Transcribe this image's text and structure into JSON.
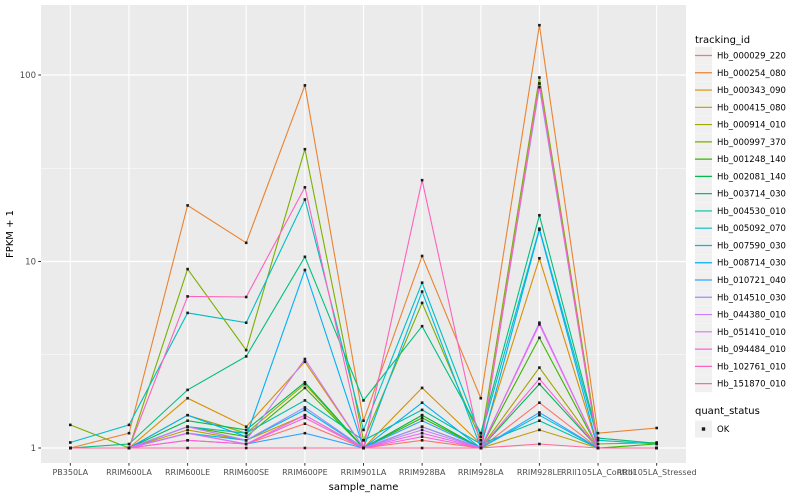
{
  "figure": {
    "y_axis_title": "FPKM + 1",
    "x_axis_title": "sample_name",
    "legend_title": "tracking_id",
    "quant_legend_title": "quant_status",
    "quant_legend_items": [
      {
        "label": "OK"
      }
    ],
    "colors": {
      "panel_bg": "#EBEBEB",
      "grid": "#FFFFFF",
      "axis_text": "#4D4D4D",
      "axis_title": "#000000",
      "tick_mark": "#333333",
      "point": "#1A1A1A",
      "legend_key_bg": "#F0F0F0"
    }
  },
  "chart_data": {
    "type": "line",
    "title": "",
    "xlabel": "sample_name",
    "ylabel": "FPKM + 1",
    "y_scale": "log10",
    "y_ticks": [
      1,
      10,
      100
    ],
    "y_minor_ticks": [
      3.1623,
      31.623
    ],
    "ylim": [
      0.84,
      234
    ],
    "grid": true,
    "legend_position": "right",
    "point_shape": "filled-square",
    "categories": [
      "PB350LA",
      "RRIM600LA",
      "RRIM600LE",
      "RRIM600SE",
      "RRIM600PE",
      "RRIM901LA",
      "RRIM928BA",
      "RRIM928LA",
      "RRIM928LE",
      "RRII105LA_Control",
      "RRII105LA_Stressed"
    ],
    "series": [
      {
        "name": "Hb_000029_220",
        "color": "#F8766D",
        "values": [
          1.0,
          1.0,
          1.1,
          1.05,
          1.35,
          1.0,
          1.1,
          1.0,
          1.75,
          1.0,
          1.0
        ]
      },
      {
        "name": "Hb_000254_080",
        "color": "#EA8331",
        "values": [
          1.0,
          1.2,
          20.0,
          12.6,
          88.0,
          1.4,
          10.7,
          1.85,
          185.0,
          1.2,
          1.28
        ]
      },
      {
        "name": "Hb_000343_090",
        "color": "#D89000",
        "values": [
          1.0,
          1.0,
          1.85,
          1.3,
          2.9,
          1.0,
          2.1,
          1.05,
          10.4,
          1.0,
          1.0
        ]
      },
      {
        "name": "Hb_000415_080",
        "color": "#C09B00",
        "values": [
          1.0,
          1.0,
          1.25,
          1.1,
          1.5,
          1.0,
          1.3,
          1.0,
          1.25,
          1.0,
          1.0
        ]
      },
      {
        "name": "Hb_000914_010",
        "color": "#A3A500",
        "values": [
          1.0,
          1.0,
          1.5,
          1.2,
          2.2,
          1.0,
          1.5,
          1.0,
          2.7,
          1.0,
          1.0
        ]
      },
      {
        "name": "Hb_000997_370",
        "color": "#7CAE00",
        "values": [
          1.33,
          1.0,
          9.1,
          3.35,
          40.0,
          1.1,
          6.0,
          1.1,
          97.0,
          1.05,
          1.07
        ]
      },
      {
        "name": "Hb_001248_140",
        "color": "#39B600",
        "values": [
          1.0,
          1.0,
          1.3,
          1.15,
          2.1,
          1.0,
          1.45,
          1.0,
          3.9,
          1.0,
          1.05
        ]
      },
      {
        "name": "Hb_002081_140",
        "color": "#00BB4E",
        "values": [
          1.0,
          1.0,
          1.4,
          1.25,
          2.25,
          1.0,
          1.5,
          1.0,
          2.2,
          1.0,
          1.0
        ]
      },
      {
        "name": "Hb_003714_030",
        "color": "#00BF7D",
        "values": [
          1.0,
          1.05,
          2.05,
          3.1,
          10.6,
          1.8,
          4.5,
          1.2,
          17.7,
          1.13,
          1.06
        ]
      },
      {
        "name": "Hb_004530_010",
        "color": "#00C1A3",
        "values": [
          1.0,
          1.0,
          1.3,
          1.2,
          1.8,
          1.1,
          1.6,
          1.05,
          1.4,
          1.0,
          1.0
        ]
      },
      {
        "name": "Hb_005092_070",
        "color": "#00BFC4",
        "values": [
          1.07,
          1.33,
          5.3,
          4.7,
          21.5,
          1.25,
          7.7,
          1.15,
          15.0,
          1.1,
          1.05
        ]
      },
      {
        "name": "Hb_007590_030",
        "color": "#00BAE0",
        "values": [
          1.0,
          1.0,
          1.2,
          1.1,
          1.6,
          1.0,
          6.9,
          1.0,
          1.5,
          1.0,
          1.0
        ]
      },
      {
        "name": "Hb_008714_030",
        "color": "#00B0F6",
        "values": [
          1.0,
          1.0,
          1.5,
          1.15,
          9.0,
          1.0,
          1.75,
          1.0,
          14.8,
          1.0,
          1.0
        ]
      },
      {
        "name": "Hb_010721_040",
        "color": "#35A2FF",
        "values": [
          1.0,
          1.0,
          1.2,
          1.05,
          1.2,
          1.0,
          1.4,
          1.0,
          1.55,
          1.0,
          1.0
        ]
      },
      {
        "name": "Hb_014510_030",
        "color": "#9590FF",
        "values": [
          1.0,
          1.0,
          1.3,
          1.1,
          1.65,
          1.0,
          1.3,
          1.0,
          86.0,
          1.0,
          1.0
        ]
      },
      {
        "name": "Hb_044380_010",
        "color": "#C77CFF",
        "values": [
          1.0,
          1.0,
          1.3,
          1.1,
          3.0,
          1.0,
          1.25,
          1.0,
          4.7,
          1.0,
          1.0
        ]
      },
      {
        "name": "Hb_051410_010",
        "color": "#E76BF3",
        "values": [
          1.0,
          1.0,
          1.2,
          1.05,
          1.5,
          1.0,
          1.2,
          1.0,
          4.6,
          1.0,
          1.0
        ]
      },
      {
        "name": "Hb_094484_010",
        "color": "#FA62DB",
        "values": [
          1.0,
          1.0,
          1.1,
          1.05,
          1.45,
          1.0,
          1.15,
          1.0,
          2.35,
          1.0,
          1.0
        ]
      },
      {
        "name": "Hb_102761_010",
        "color": "#FF62BC",
        "values": [
          1.0,
          1.0,
          6.5,
          6.45,
          25.0,
          1.0,
          27.3,
          1.0,
          90.0,
          1.0,
          1.0
        ]
      },
      {
        "name": "Hb_151870_010",
        "color": "#FF6A98",
        "values": [
          1.0,
          1.0,
          1.0,
          1.0,
          1.0,
          1.0,
          1.0,
          1.0,
          1.05,
          1.0,
          1.0
        ]
      }
    ],
    "quant_status": "OK"
  }
}
